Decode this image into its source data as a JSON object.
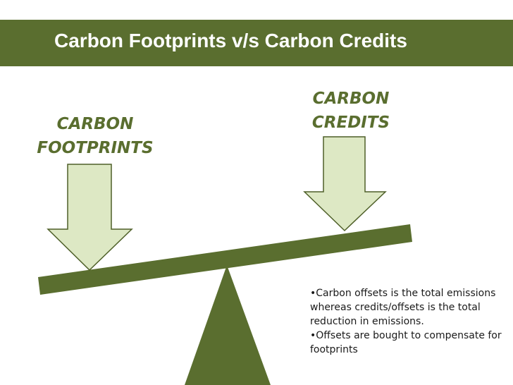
{
  "title": "Carbon Footprints v/s Carbon Credits",
  "left_label": [
    "CARBON",
    "FOOTPRINTS"
  ],
  "right_label": [
    "CARBON",
    "CREDITS"
  ],
  "notes": [
    "•Carbon offsets is the total emissions whereas credits/offsets is the total reduction in emissions.",
    "•Offsets are bought to compensate for footprints"
  ],
  "colors": {
    "header": "#5a6e2f",
    "beam": "#5a6e2f",
    "arrow_fill": "#dde8c4",
    "arrow_stroke": "#4e5f28",
    "label_text": "#5a6e2f"
  }
}
